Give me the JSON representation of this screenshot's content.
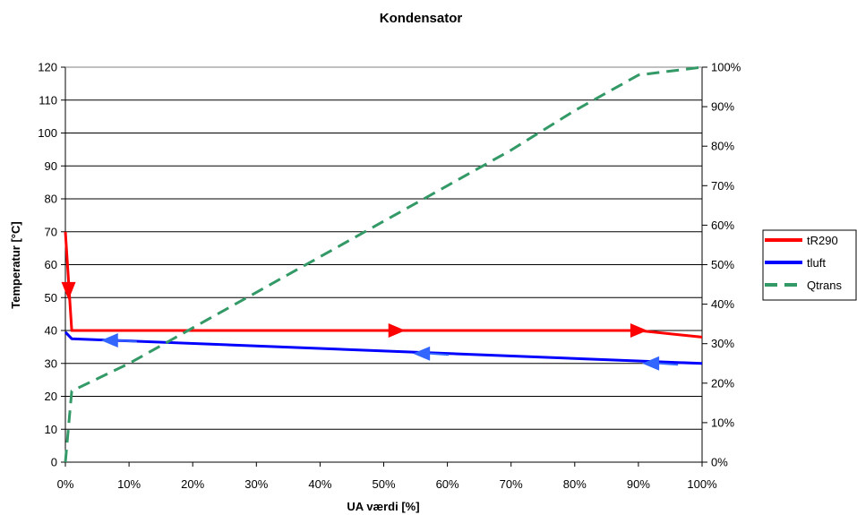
{
  "chart_data": {
    "type": "line",
    "title": "Kondensator",
    "xlabel": "UA værdi [%]",
    "ylabel": "Temperatur [°C]",
    "xlim": [
      0,
      100
    ],
    "ylim": [
      0,
      120
    ],
    "y2lim": [
      0,
      100
    ],
    "x_ticks": [
      0,
      10,
      20,
      30,
      40,
      50,
      60,
      70,
      80,
      90,
      100
    ],
    "x_tick_labels": [
      "0%",
      "10%",
      "20%",
      "30%",
      "40%",
      "50%",
      "60%",
      "70%",
      "80%",
      "90%",
      "100%"
    ],
    "y_ticks": [
      0,
      10,
      20,
      30,
      40,
      50,
      60,
      70,
      80,
      90,
      100,
      110,
      120
    ],
    "y_tick_labels": [
      "0",
      "10",
      "20",
      "30",
      "40",
      "50",
      "60",
      "70",
      "80",
      "90",
      "100",
      "110",
      "120"
    ],
    "y2_ticks": [
      0,
      10,
      20,
      30,
      40,
      50,
      60,
      70,
      80,
      90,
      100
    ],
    "y2_tick_labels": [
      "0%",
      "10%",
      "20%",
      "30%",
      "40%",
      "50%",
      "60%",
      "70%",
      "80%",
      "90%",
      "100%"
    ],
    "grid": "horizontal",
    "legend_position": "right",
    "series": [
      {
        "name": "tR290",
        "color": "#ff0000",
        "style": "solid",
        "axis": "left",
        "x": [
          0,
          1,
          90,
          100
        ],
        "y": [
          70,
          40,
          40,
          38
        ]
      },
      {
        "name": "tluft",
        "color": "#0000ff",
        "style": "solid",
        "axis": "left",
        "x": [
          0,
          1,
          100
        ],
        "y": [
          39.5,
          37.5,
          30
        ]
      },
      {
        "name": "Qtrans",
        "color": "#339966",
        "style": "dashed",
        "axis": "right",
        "x": [
          0,
          1,
          10,
          20,
          30,
          40,
          50,
          60,
          70,
          80,
          90,
          100
        ],
        "y": [
          0,
          18,
          25,
          34,
          43,
          52,
          61,
          70,
          79,
          89,
          98,
          100
        ]
      }
    ],
    "annotations": [
      {
        "type": "arrow",
        "direction": "down",
        "color": "#ff0000",
        "x": 0.5,
        "y": 52
      },
      {
        "type": "arrow",
        "direction": "right",
        "color": "#ff0000",
        "x": 52,
        "y": 40
      },
      {
        "type": "arrow",
        "direction": "right",
        "color": "#ff0000",
        "x": 90,
        "y": 40
      },
      {
        "type": "arrow",
        "direction": "left",
        "color": "#3366ff",
        "x": 7,
        "y": 37
      },
      {
        "type": "arrow",
        "direction": "left",
        "color": "#3366ff",
        "x": 56,
        "y": 33
      },
      {
        "type": "arrow",
        "direction": "left",
        "color": "#3366ff",
        "x": 92,
        "y": 30
      }
    ]
  }
}
